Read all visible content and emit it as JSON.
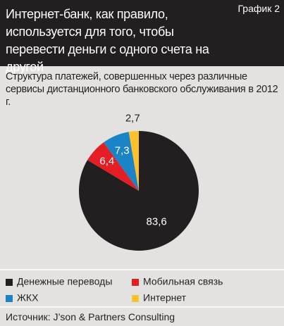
{
  "chart_data": {
    "type": "pie",
    "badge": "График 2",
    "title": "Интернет-банк, как правило, используется для того, чтобы перевести деньги с одного счета на другой",
    "subtitle": "Структура платежей, совершенных через различные сервисы дистанционного банковского обслуживания в 2012 г.",
    "categories": [
      "Денежные переводы",
      "Мобильная связь",
      "ЖКХ",
      "Интернет"
    ],
    "values": [
      83.6,
      6.4,
      7.3,
      2.7
    ],
    "value_labels": [
      "83,6",
      "6,4",
      "7,3",
      "2,7"
    ],
    "colors": [
      "#231f20",
      "#e31e24",
      "#1b84c7",
      "#fcc22d"
    ],
    "source": "Источник: J’son & Partners Consulting"
  }
}
